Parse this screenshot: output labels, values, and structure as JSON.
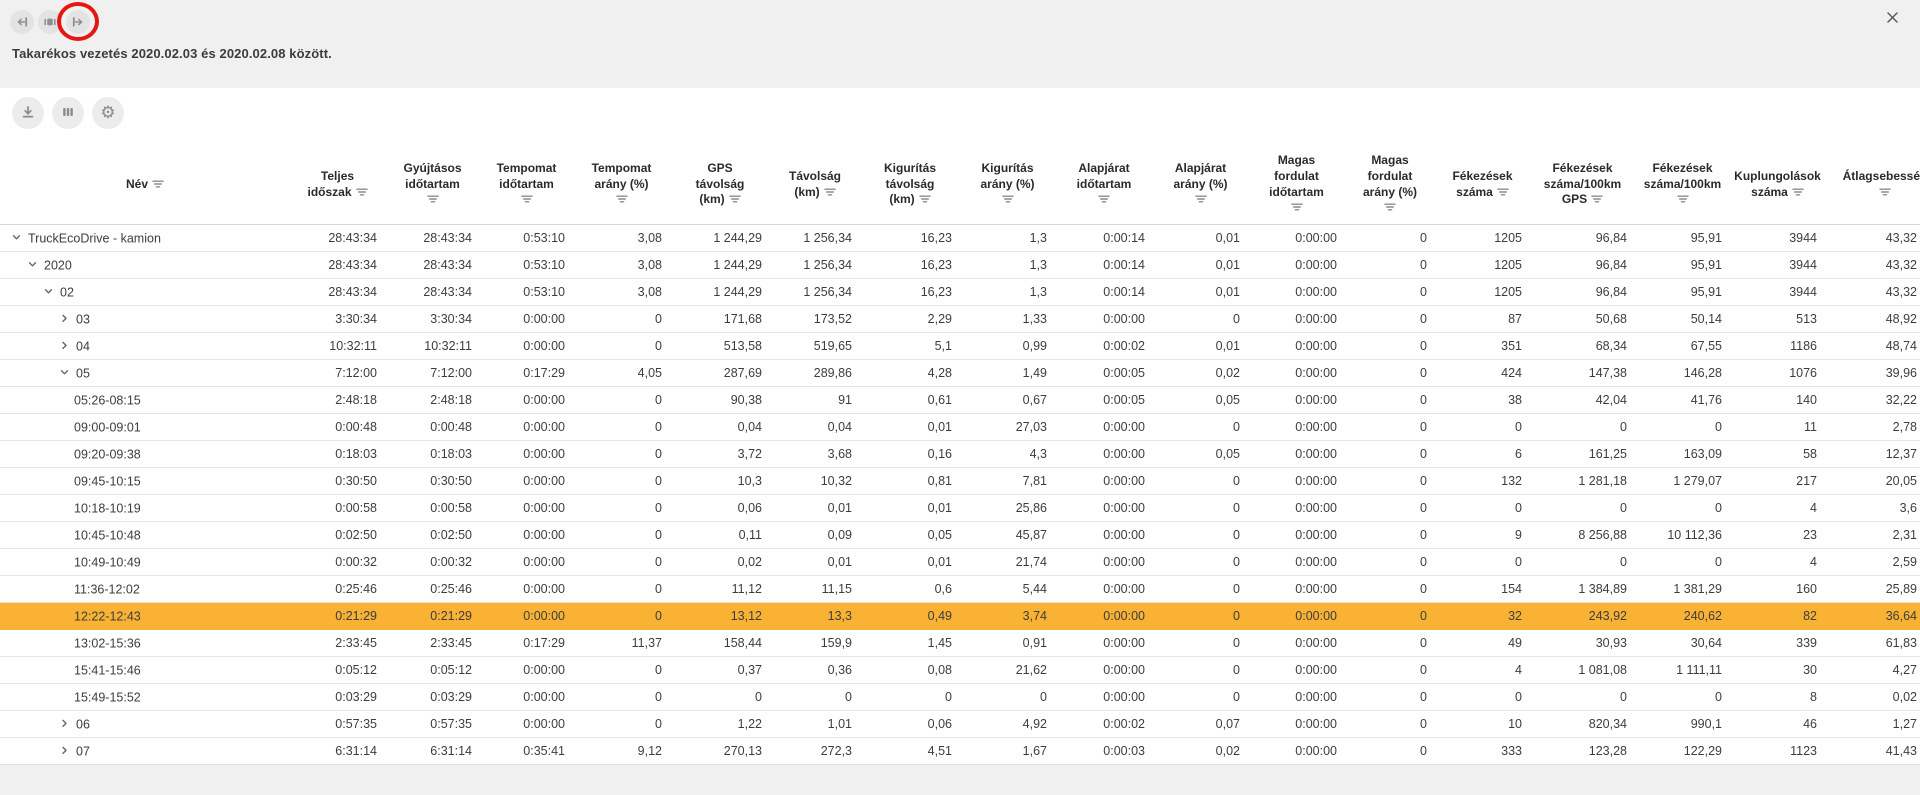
{
  "window": {
    "close": "✕"
  },
  "topbar": {
    "title": "Takarékos vezetés 2020.02.03 és 2020.02.08 között.",
    "nav_buttons": [
      {
        "id": "prev-period",
        "icon": "arrow-left-to-bar-icon"
      },
      {
        "id": "current-period",
        "icon": "range-icon"
      },
      {
        "id": "next-period",
        "icon": "bar-to-arrow-right-icon",
        "annotated": true
      }
    ],
    "annotation_color": "#e41712"
  },
  "actions": [
    {
      "id": "download",
      "icon": "download-icon"
    },
    {
      "id": "columns",
      "icon": "columns-icon"
    },
    {
      "id": "settings",
      "icon": "gear-icon"
    }
  ],
  "colors": {
    "topbar_bg": "#f0f0f0",
    "highlight_row": "#f9b234",
    "annotation": "#e41712"
  },
  "table": {
    "columns": [
      {
        "id": "nev",
        "lines": [
          "Név"
        ],
        "icon": "inline"
      },
      {
        "id": "teljes-idoszak",
        "lines": [
          "Teljes",
          "időszak"
        ],
        "icon": "inline"
      },
      {
        "id": "gyujtasos-idotartam",
        "lines": [
          "Gyújtásos",
          "időtartam"
        ],
        "icon": "below"
      },
      {
        "id": "tempomat-idotartam",
        "lines": [
          "Tempomat",
          "időtartam"
        ],
        "icon": "below"
      },
      {
        "id": "tempomat-arany",
        "lines": [
          "Tempomat",
          "arány (%)"
        ],
        "icon": "below"
      },
      {
        "id": "gps-tavolsag",
        "lines": [
          "GPS",
          "távolság",
          "(km)"
        ],
        "icon": "inline"
      },
      {
        "id": "tavolsag",
        "lines": [
          "Távolság",
          "(km)"
        ],
        "icon": "inline"
      },
      {
        "id": "kiguritas-tavolsag",
        "lines": [
          "Kigurítás",
          "távolság",
          "(km)"
        ],
        "icon": "inline"
      },
      {
        "id": "kiguritas-arany",
        "lines": [
          "Kigurítás",
          "arány (%)"
        ],
        "icon": "below"
      },
      {
        "id": "alapjarat-idotartam",
        "lines": [
          "Alapjárat",
          "időtartam"
        ],
        "icon": "below"
      },
      {
        "id": "alapjarat-arany",
        "lines": [
          "Alapjárat",
          "arány (%)"
        ],
        "icon": "below"
      },
      {
        "id": "magas-fordulat-idotartam",
        "lines": [
          "Magas",
          "fordulat",
          "időtartam"
        ],
        "icon": "below"
      },
      {
        "id": "magas-fordulat-arany",
        "lines": [
          "Magas",
          "fordulat",
          "arány (%)"
        ],
        "icon": "below"
      },
      {
        "id": "fekezesek-szama",
        "lines": [
          "Fékezések",
          "száma"
        ],
        "icon": "inline"
      },
      {
        "id": "fekezesek-szama-100km-gps",
        "lines": [
          "Fékezések",
          "száma/100km",
          "GPS"
        ],
        "icon": "inline"
      },
      {
        "id": "fekezesek-szama-100km",
        "lines": [
          "Fékezések",
          "száma/100km"
        ],
        "icon": "below"
      },
      {
        "id": "kuplungolasok-szama",
        "lines": [
          "Kuplungolások",
          "száma"
        ],
        "icon": "inline"
      },
      {
        "id": "atlagsebesseg",
        "lines": [
          "Átlagsebesség"
        ],
        "icon": "below"
      }
    ],
    "rows": [
      {
        "name": "TruckEcoDrive - kamion",
        "level": 0,
        "expander": "expanded",
        "highlighted": false,
        "values": [
          "28:43:34",
          "28:43:34",
          "0:53:10",
          "3,08",
          "1 244,29",
          "1 256,34",
          "16,23",
          "1,3",
          "0:00:14",
          "0,01",
          "0:00:00",
          "0",
          "1205",
          "96,84",
          "95,91",
          "3944",
          "43,32"
        ]
      },
      {
        "name": "2020",
        "level": 1,
        "expander": "expanded",
        "highlighted": false,
        "values": [
          "28:43:34",
          "28:43:34",
          "0:53:10",
          "3,08",
          "1 244,29",
          "1 256,34",
          "16,23",
          "1,3",
          "0:00:14",
          "0,01",
          "0:00:00",
          "0",
          "1205",
          "96,84",
          "95,91",
          "3944",
          "43,32"
        ]
      },
      {
        "name": "02",
        "level": 2,
        "expander": "expanded",
        "highlighted": false,
        "values": [
          "28:43:34",
          "28:43:34",
          "0:53:10",
          "3,08",
          "1 244,29",
          "1 256,34",
          "16,23",
          "1,3",
          "0:00:14",
          "0,01",
          "0:00:00",
          "0",
          "1205",
          "96,84",
          "95,91",
          "3944",
          "43,32"
        ]
      },
      {
        "name": "03",
        "level": 3,
        "expander": "collapsed",
        "highlighted": false,
        "values": [
          "3:30:34",
          "3:30:34",
          "0:00:00",
          "0",
          "171,68",
          "173,52",
          "2,29",
          "1,33",
          "0:00:00",
          "0",
          "0:00:00",
          "0",
          "87",
          "50,68",
          "50,14",
          "513",
          "48,92"
        ]
      },
      {
        "name": "04",
        "level": 3,
        "expander": "collapsed",
        "highlighted": false,
        "values": [
          "10:32:11",
          "10:32:11",
          "0:00:00",
          "0",
          "513,58",
          "519,65",
          "5,1",
          "0,99",
          "0:00:02",
          "0,01",
          "0:00:00",
          "0",
          "351",
          "68,34",
          "67,55",
          "1186",
          "48,74"
        ]
      },
      {
        "name": "05",
        "level": 3,
        "expander": "expanded",
        "highlighted": false,
        "values": [
          "7:12:00",
          "7:12:00",
          "0:17:29",
          "4,05",
          "287,69",
          "289,86",
          "4,28",
          "1,49",
          "0:00:05",
          "0,02",
          "0:00:00",
          "0",
          "424",
          "147,38",
          "146,28",
          "1076",
          "39,96"
        ]
      },
      {
        "name": "05:26-08:15",
        "level": 4,
        "expander": "none",
        "highlighted": false,
        "values": [
          "2:48:18",
          "2:48:18",
          "0:00:00",
          "0",
          "90,38",
          "91",
          "0,61",
          "0,67",
          "0:00:05",
          "0,05",
          "0:00:00",
          "0",
          "38",
          "42,04",
          "41,76",
          "140",
          "32,22"
        ]
      },
      {
        "name": "09:00-09:01",
        "level": 4,
        "expander": "none",
        "highlighted": false,
        "values": [
          "0:00:48",
          "0:00:48",
          "0:00:00",
          "0",
          "0,04",
          "0,04",
          "0,01",
          "27,03",
          "0:00:00",
          "0",
          "0:00:00",
          "0",
          "0",
          "0",
          "0",
          "11",
          "2,78"
        ]
      },
      {
        "name": "09:20-09:38",
        "level": 4,
        "expander": "none",
        "highlighted": false,
        "values": [
          "0:18:03",
          "0:18:03",
          "0:00:00",
          "0",
          "3,72",
          "3,68",
          "0,16",
          "4,3",
          "0:00:00",
          "0,05",
          "0:00:00",
          "0",
          "6",
          "161,25",
          "163,09",
          "58",
          "12,37"
        ]
      },
      {
        "name": "09:45-10:15",
        "level": 4,
        "expander": "none",
        "highlighted": false,
        "values": [
          "0:30:50",
          "0:30:50",
          "0:00:00",
          "0",
          "10,3",
          "10,32",
          "0,81",
          "7,81",
          "0:00:00",
          "0",
          "0:00:00",
          "0",
          "132",
          "1 281,18",
          "1 279,07",
          "217",
          "20,05"
        ]
      },
      {
        "name": "10:18-10:19",
        "level": 4,
        "expander": "none",
        "highlighted": false,
        "values": [
          "0:00:58",
          "0:00:58",
          "0:00:00",
          "0",
          "0,06",
          "0,01",
          "0,01",
          "25,86",
          "0:00:00",
          "0",
          "0:00:00",
          "0",
          "0",
          "0",
          "0",
          "4",
          "3,6"
        ]
      },
      {
        "name": "10:45-10:48",
        "level": 4,
        "expander": "none",
        "highlighted": false,
        "values": [
          "0:02:50",
          "0:02:50",
          "0:00:00",
          "0",
          "0,11",
          "0,09",
          "0,05",
          "45,87",
          "0:00:00",
          "0",
          "0:00:00",
          "0",
          "9",
          "8 256,88",
          "10 112,36",
          "23",
          "2,31"
        ]
      },
      {
        "name": "10:49-10:49",
        "level": 4,
        "expander": "none",
        "highlighted": false,
        "values": [
          "0:00:32",
          "0:00:32",
          "0:00:00",
          "0",
          "0,02",
          "0,01",
          "0,01",
          "21,74",
          "0:00:00",
          "0",
          "0:00:00",
          "0",
          "0",
          "0",
          "0",
          "4",
          "2,59"
        ]
      },
      {
        "name": "11:36-12:02",
        "level": 4,
        "expander": "none",
        "highlighted": false,
        "values": [
          "0:25:46",
          "0:25:46",
          "0:00:00",
          "0",
          "11,12",
          "11,15",
          "0,6",
          "5,44",
          "0:00:00",
          "0",
          "0:00:00",
          "0",
          "154",
          "1 384,89",
          "1 381,29",
          "160",
          "25,89"
        ]
      },
      {
        "name": "12:22-12:43",
        "level": 4,
        "expander": "none",
        "highlighted": true,
        "values": [
          "0:21:29",
          "0:21:29",
          "0:00:00",
          "0",
          "13,12",
          "13,3",
          "0,49",
          "3,74",
          "0:00:00",
          "0",
          "0:00:00",
          "0",
          "32",
          "243,92",
          "240,62",
          "82",
          "36,64"
        ]
      },
      {
        "name": "13:02-15:36",
        "level": 4,
        "expander": "none",
        "highlighted": false,
        "values": [
          "2:33:45",
          "2:33:45",
          "0:17:29",
          "11,37",
          "158,44",
          "159,9",
          "1,45",
          "0,91",
          "0:00:00",
          "0",
          "0:00:00",
          "0",
          "49",
          "30,93",
          "30,64",
          "339",
          "61,83"
        ]
      },
      {
        "name": "15:41-15:46",
        "level": 4,
        "expander": "none",
        "highlighted": false,
        "values": [
          "0:05:12",
          "0:05:12",
          "0:00:00",
          "0",
          "0,37",
          "0,36",
          "0,08",
          "21,62",
          "0:00:00",
          "0",
          "0:00:00",
          "0",
          "4",
          "1 081,08",
          "1 111,11",
          "30",
          "4,27"
        ]
      },
      {
        "name": "15:49-15:52",
        "level": 4,
        "expander": "none",
        "highlighted": false,
        "values": [
          "0:03:29",
          "0:03:29",
          "0:00:00",
          "0",
          "0",
          "0",
          "0",
          "0",
          "0:00:00",
          "0",
          "0:00:00",
          "0",
          "0",
          "0",
          "0",
          "8",
          "0,02"
        ]
      },
      {
        "name": "06",
        "level": 3,
        "expander": "collapsed",
        "highlighted": false,
        "values": [
          "0:57:35",
          "0:57:35",
          "0:00:00",
          "0",
          "1,22",
          "1,01",
          "0,06",
          "4,92",
          "0:00:02",
          "0,07",
          "0:00:00",
          "0",
          "10",
          "820,34",
          "990,1",
          "46",
          "1,27"
        ]
      },
      {
        "name": "07",
        "level": 3,
        "expander": "collapsed",
        "highlighted": false,
        "values": [
          "6:31:14",
          "6:31:14",
          "0:35:41",
          "9,12",
          "270,13",
          "272,3",
          "4,51",
          "1,67",
          "0:00:03",
          "0,02",
          "0:00:00",
          "0",
          "333",
          "123,28",
          "122,29",
          "1123",
          "41,43"
        ]
      }
    ]
  }
}
